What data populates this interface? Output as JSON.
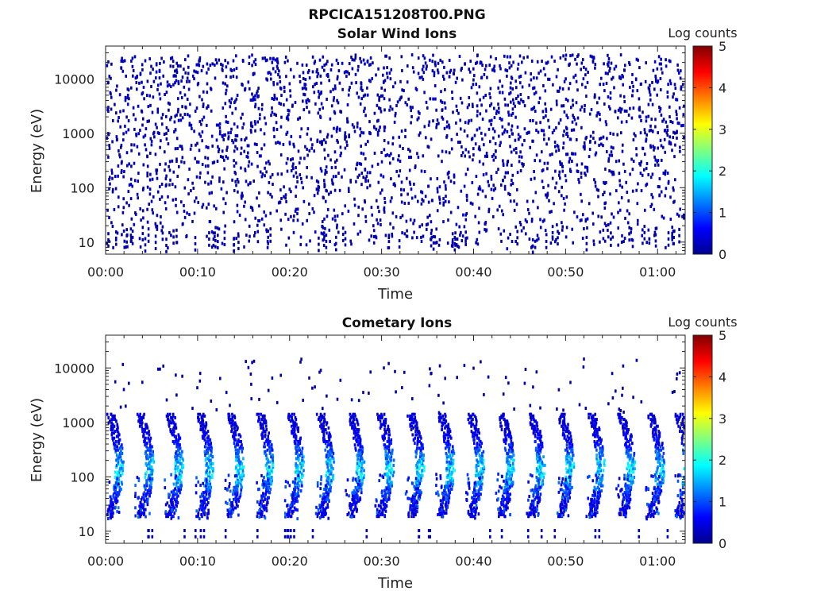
{
  "figure_title": "RPCICA151208T00.PNG",
  "colorbar": {
    "colors": [
      "#00008f",
      "#0000ff",
      "#00ffff",
      "#ffff00",
      "#ff0000",
      "#800000"
    ]
  },
  "chart_data": [
    {
      "type": "heatmap",
      "title": "Solar Wind Ions",
      "xlabel": "Time",
      "ylabel": "Energy (eV)",
      "x_unit": "minutes since 00:00",
      "xlim": [
        0,
        63
      ],
      "xticks": [
        0,
        10,
        20,
        30,
        40,
        50,
        60
      ],
      "xtick_labels": [
        "00:00",
        "00:10",
        "00:20",
        "00:30",
        "00:40",
        "00:50",
        "01:00"
      ],
      "yscale": "log",
      "ylim": [
        6,
        40000
      ],
      "yticks": [
        10,
        100,
        1000,
        10000
      ],
      "ytick_labels": [
        "10",
        "100",
        "1000",
        "10000"
      ],
      "colorbar_label": "Log counts",
      "clim": [
        0,
        5
      ],
      "cticks": [
        "0",
        "1",
        "2",
        "3",
        "4",
        "5"
      ],
      "description_values": "sparse scattered counts mostly at log counts 0-0.5 across 10 eV - 40 keV for the whole interval",
      "level": "sparse-low"
    },
    {
      "type": "heatmap",
      "title": "Cometary Ions",
      "xlabel": "Time",
      "ylabel": "Energy (eV)",
      "x_unit": "minutes since 00:00",
      "xlim": [
        0,
        63
      ],
      "xticks": [
        0,
        10,
        20,
        30,
        40,
        50,
        60
      ],
      "xtick_labels": [
        "00:00",
        "00:10",
        "00:20",
        "00:30",
        "00:40",
        "00:50",
        "01:00"
      ],
      "yscale": "log",
      "ylim": [
        6,
        40000
      ],
      "yticks": [
        10,
        100,
        1000,
        10000
      ],
      "ytick_labels": [
        "10",
        "100",
        "1000",
        "10000"
      ],
      "colorbar_label": "Log counts",
      "clim": [
        0,
        5
      ],
      "cticks": [
        "0",
        "1",
        "2",
        "3",
        "4",
        "5"
      ],
      "arc_centers_min": [
        1.0,
        4.3,
        7.5,
        10.8,
        14.1,
        17.3,
        20.6,
        23.9,
        27.2,
        30.4,
        33.7,
        37.0,
        40.2,
        43.5,
        46.8,
        50.0,
        53.3,
        56.6,
        59.8,
        62.8
      ],
      "arc_energy_range_eV": [
        20,
        1500
      ],
      "peak_log_counts": 2.0,
      "level": "arcs"
    }
  ]
}
